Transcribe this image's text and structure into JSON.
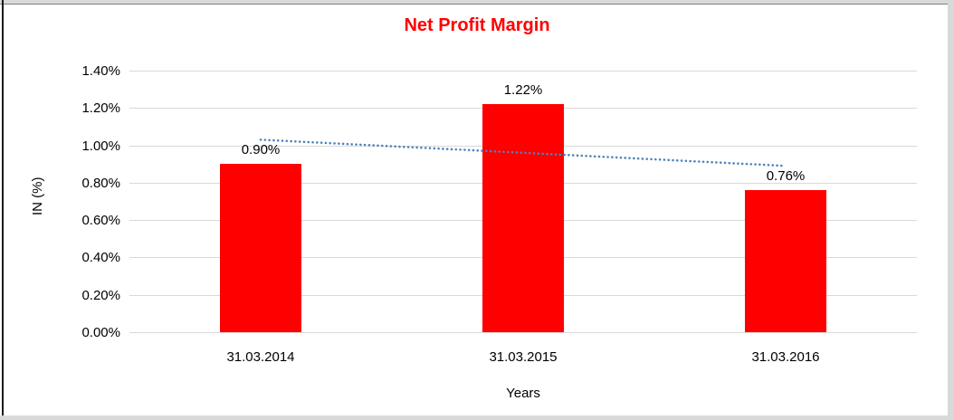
{
  "chart_data": {
    "type": "bar",
    "title": "Net Profit Margin",
    "title_color": "#FF0000",
    "categories": [
      "31.03.2014",
      "31.03.2015",
      "31.03.2016"
    ],
    "values": [
      0.9,
      1.22,
      0.76
    ],
    "data_labels": [
      "0.90%",
      "1.22%",
      "0.76%"
    ],
    "xlabel": "Years",
    "ylabel": "IN (%)",
    "ylim": [
      0,
      1.4
    ],
    "ytick_step": 0.2,
    "ytick_labels": [
      "0.00%",
      "0.20%",
      "0.40%",
      "0.60%",
      "0.80%",
      "1.00%",
      "1.20%",
      "1.40%"
    ],
    "grid": true,
    "gridline_color": "#d9d9d9",
    "bar_color": "#FF0000",
    "legend": "none",
    "trendline": {
      "type": "linear",
      "style": "dotted",
      "color": "#4E81BD"
    }
  }
}
